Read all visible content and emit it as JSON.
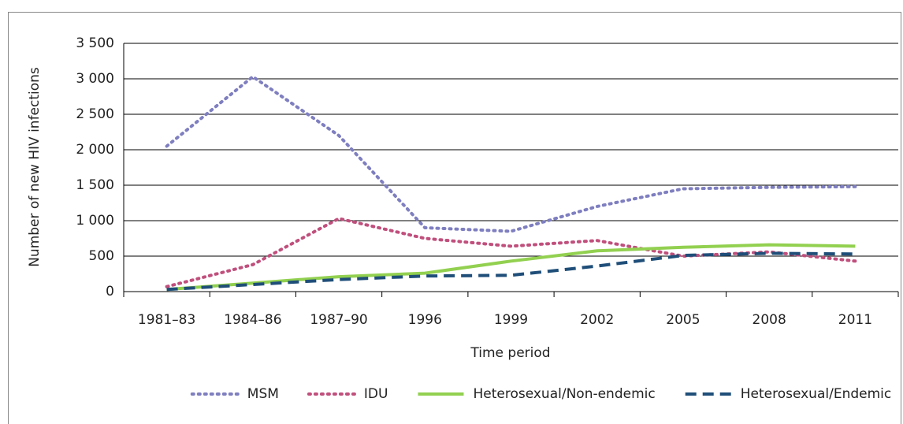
{
  "chart_data": {
    "type": "line",
    "x_label": "Time period",
    "y_label": "Number of new HIV infections",
    "categories": [
      "1981–83",
      "1984–86",
      "1987–90",
      "1996",
      "1999",
      "2002",
      "2005",
      "2008",
      "2011"
    ],
    "series": [
      {
        "name": "MSM",
        "color": "#7e7ec0",
        "style": "dotted",
        "values": [
          2050,
          3030,
          2200,
          900,
          850,
          1200,
          1450,
          1470,
          1480
        ]
      },
      {
        "name": "IDU",
        "color": "#c04f7c",
        "style": "dotted",
        "values": [
          70,
          380,
          1030,
          750,
          640,
          720,
          500,
          560,
          430
        ]
      },
      {
        "name": "Heterosexual/Non-endemic",
        "color": "#92d050",
        "style": "solid",
        "values": [
          30,
          120,
          210,
          260,
          430,
          575,
          625,
          660,
          640
        ]
      },
      {
        "name": "Heterosexual/Endemic",
        "color": "#1f4e79",
        "style": "dashed",
        "values": [
          30,
          100,
          170,
          220,
          230,
          360,
          510,
          540,
          530
        ]
      }
    ],
    "ylim": [
      0,
      3500
    ],
    "yticks": [
      0,
      500,
      {
        "value": 1000,
        "label": "1 000"
      },
      {
        "value": 1500,
        "label": "1 500"
      },
      {
        "value": 2000,
        "label": "2 000"
      },
      {
        "value": 2500,
        "label": "2 500"
      },
      {
        "value": 3000,
        "label": "3 000"
      },
      {
        "value": 3500,
        "label": "3 500"
      }
    ],
    "grid": true,
    "legend": "bottom"
  }
}
